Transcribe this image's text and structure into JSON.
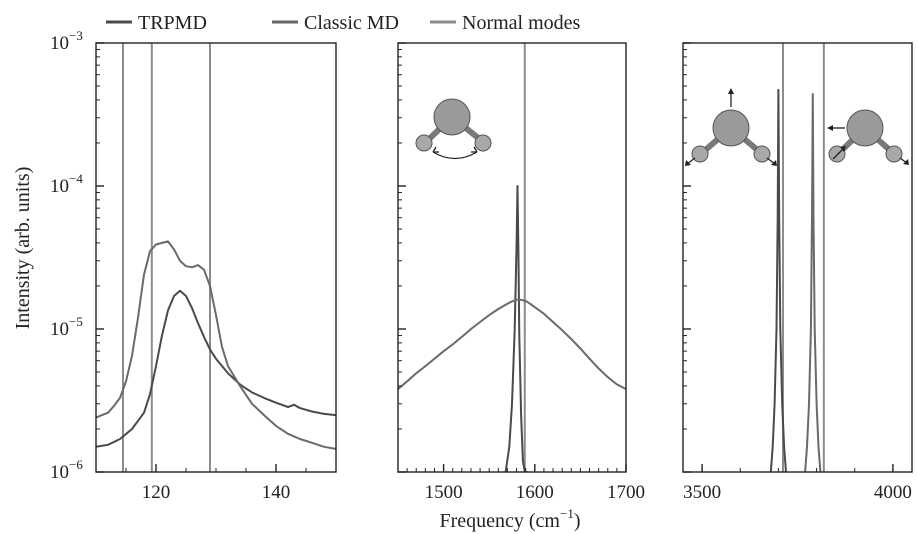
{
  "legend": [
    {
      "label": "TRPMD",
      "color": "#4a4a4a"
    },
    {
      "label": "Classic MD",
      "color": "#666666"
    },
    {
      "label": "Normal modes",
      "color": "#8c8c8c"
    }
  ],
  "ylabel": "Intensity (arb. units)",
  "xlabel_main": "Frequency (cm",
  "xlabel_sup": "−1",
  "xlabel_close": ")",
  "y_ticks": [
    {
      "base": "10",
      "exp": "−3",
      "value": 0.001
    },
    {
      "base": "10",
      "exp": "−4",
      "value": 0.0001
    },
    {
      "base": "10",
      "exp": "−5",
      "value": 1e-05
    },
    {
      "base": "10",
      "exp": "−6",
      "value": 1e-06
    }
  ],
  "colors": {
    "trpmd": "#4a4a4a",
    "classic": "#6a6a6a",
    "normal": "#8c8c8c",
    "axis": "#222222"
  },
  "chart_data": [
    {
      "type": "line",
      "panel": "left",
      "y_scale": "log",
      "xlim": [
        110,
        150
      ],
      "ylim": [
        1e-06,
        0.001
      ],
      "xticks": [
        120,
        140
      ],
      "normal_modes": [
        114.5,
        119.3,
        129
      ],
      "series": [
        {
          "name": "TRPMD",
          "x": [
            110,
            112,
            114,
            116,
            118,
            119,
            120,
            121,
            122,
            123,
            124,
            125,
            126,
            127,
            128,
            129,
            130,
            132,
            134,
            136,
            138,
            140,
            142,
            143,
            144,
            146,
            148,
            150
          ],
          "y": [
            1.5e-06,
            1.55e-06,
            1.7e-06,
            2e-06,
            2.6e-06,
            3.5e-06,
            5.5e-06,
            9e-06,
            1.35e-05,
            1.7e-05,
            1.85e-05,
            1.7e-05,
            1.4e-05,
            1.1e-05,
            8.8e-06,
            7.2e-06,
            6.2e-06,
            4.9e-06,
            4.1e-06,
            3.6e-06,
            3.3e-06,
            3.05e-06,
            2.85e-06,
            2.95e-06,
            2.8e-06,
            2.65e-06,
            2.55e-06,
            2.5e-06
          ]
        },
        {
          "name": "Classic MD",
          "x": [
            110,
            111,
            112,
            113,
            114,
            115,
            116,
            117,
            118,
            119,
            120,
            121,
            122,
            123,
            124,
            125,
            126,
            127,
            128,
            129,
            130,
            131,
            132,
            134,
            136,
            138,
            140,
            142,
            144,
            146,
            148,
            150
          ],
          "y": [
            2.4e-06,
            2.5e-06,
            2.6e-06,
            2.9e-06,
            3.3e-06,
            4.3e-06,
            6.5e-06,
            1.2e-05,
            2.4e-05,
            3.5e-05,
            3.9e-05,
            4e-05,
            4.1e-05,
            3.6e-05,
            3e-05,
            2.75e-05,
            2.7e-05,
            2.8e-05,
            2.6e-05,
            2e-05,
            1.25e-05,
            7.5e-06,
            5.5e-06,
            4e-06,
            3e-06,
            2.5e-06,
            2.1e-06,
            1.85e-06,
            1.7e-06,
            1.6e-06,
            1.5e-06,
            1.45e-06
          ]
        }
      ]
    },
    {
      "type": "line",
      "panel": "middle",
      "y_scale": "log",
      "xlim": [
        1450,
        1700
      ],
      "ylim": [
        1e-06,
        0.001
      ],
      "xticks": [
        1500,
        1600,
        1700
      ],
      "normal_modes": [
        1589
      ],
      "series": [
        {
          "name": "TRPMD",
          "x": [
            1568,
            1572,
            1575,
            1578,
            1580,
            1581,
            1582,
            1583,
            1585,
            1587,
            1589,
            1590,
            1592
          ],
          "y": [
            1e-06,
            1.5e-06,
            3e-06,
            1e-05,
            4e-05,
            0.0001,
            3.5e-05,
            9e-06,
            2.5e-06,
            1.2e-06,
            1e-06,
            1e-06,
            1e-06
          ]
        },
        {
          "name": "Classic MD",
          "x": [
            1450,
            1460,
            1470,
            1480,
            1490,
            1500,
            1510,
            1520,
            1530,
            1540,
            1550,
            1560,
            1570,
            1575,
            1580,
            1585,
            1590,
            1595,
            1600,
            1610,
            1620,
            1630,
            1640,
            1650,
            1660,
            1670,
            1680,
            1690,
            1700
          ],
          "y": [
            3.8e-06,
            4.3e-06,
            4.9e-06,
            5.5e-06,
            6.2e-06,
            7e-06,
            7.8e-06,
            8.8e-06,
            1e-05,
            1.12e-05,
            1.25e-05,
            1.38e-05,
            1.5e-05,
            1.56e-05,
            1.6e-05,
            1.6e-05,
            1.57e-05,
            1.5e-05,
            1.42e-05,
            1.28e-05,
            1.12e-05,
            9.8e-06,
            8.5e-06,
            7.3e-06,
            6.2e-06,
            5.3e-06,
            4.6e-06,
            4.1e-06,
            3.8e-06
          ]
        }
      ]
    },
    {
      "type": "line",
      "panel": "right",
      "y_scale": "log",
      "xlim": [
        3450,
        4050
      ],
      "ylim": [
        1e-06,
        0.001
      ],
      "xticks": [
        3500,
        4000
      ],
      "normal_modes": [
        3712,
        3819
      ],
      "series": [
        {
          "name": "TRPMD",
          "x": [
            3680,
            3685,
            3690,
            3695,
            3698,
            3700,
            3702,
            3705,
            3710,
            3715,
            3720
          ],
          "y": [
            1e-06,
            1.5e-06,
            3e-06,
            1e-05,
            6e-05,
            0.00047,
            6e-05,
            1e-05,
            3e-06,
            1.5e-06,
            1e-06
          ]
        },
        {
          "name": "Classic MD",
          "x": [
            3770,
            3775,
            3780,
            3785,
            3788,
            3790,
            3792,
            3795,
            3800,
            3805,
            3810
          ],
          "y": [
            1e-06,
            1.5e-06,
            3e-06,
            1e-05,
            6e-05,
            0.00044,
            6e-05,
            1e-05,
            3e-06,
            1.5e-06,
            1e-06
          ]
        }
      ]
    }
  ]
}
